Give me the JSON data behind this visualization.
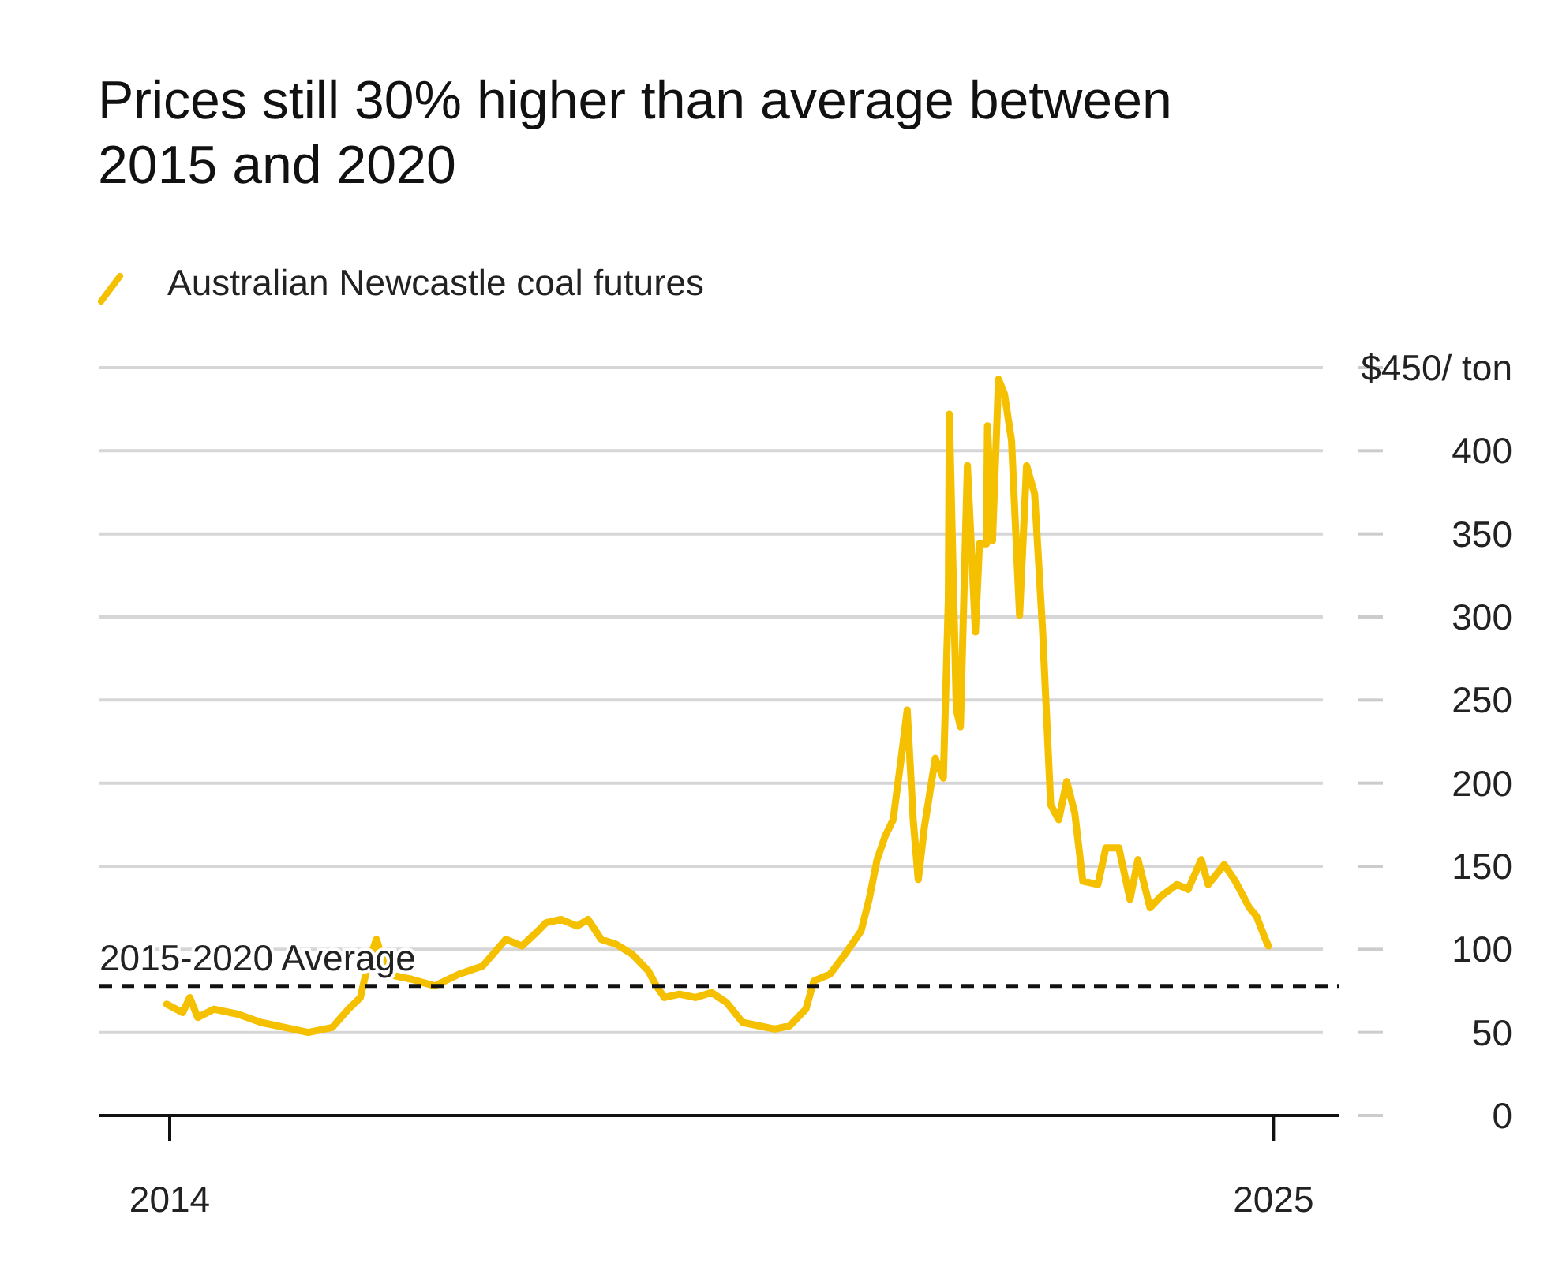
{
  "chart_data": {
    "type": "line",
    "title": "Prices still 30% higher than average between 2015 and 2020",
    "x": [
      2013.97,
      2014.13,
      2014.2,
      2014.28,
      2014.44,
      2014.68,
      2014.91,
      2015.15,
      2015.38,
      2015.62,
      2015.78,
      2015.9,
      2015.98,
      2016.06,
      2016.17,
      2016.41,
      2016.64,
      2016.88,
      2017.12,
      2017.35,
      2017.51,
      2017.67,
      2017.75,
      2017.9,
      2018.06,
      2018.17,
      2018.3,
      2018.45,
      2018.61,
      2018.77,
      2018.85,
      2018.93,
      2019.08,
      2019.24,
      2019.4,
      2019.55,
      2019.71,
      2019.87,
      2020.03,
      2020.18,
      2020.34,
      2020.42,
      2020.58,
      2020.73,
      2020.89,
      2020.97,
      2021.05,
      2021.13,
      2021.21,
      2021.29,
      2021.35,
      2021.41,
      2021.46,
      2021.52,
      2021.63,
      2021.71,
      2021.76,
      2021.77,
      2021.84,
      2021.88,
      2021.95,
      2022.03,
      2022.07,
      2022.14,
      2022.15,
      2022.2,
      2022.26,
      2022.32,
      2022.39,
      2022.47,
      2022.54,
      2022.62,
      2022.7,
      2022.78,
      2022.86,
      2022.94,
      2023.02,
      2023.1,
      2023.25,
      2023.33,
      2023.46,
      2023.57,
      2023.65,
      2023.77,
      2023.88,
      2024.04,
      2024.15,
      2024.28,
      2024.35,
      2024.51,
      2024.62,
      2024.76,
      2024.83,
      2024.92,
      2024.95
    ],
    "series": [
      {
        "name": "Australian Newcastle coal futures",
        "color": "#f5c000",
        "values": [
          67,
          62,
          71,
          59,
          64,
          61,
          56,
          53,
          50,
          53,
          64,
          71,
          92,
          106,
          85,
          82,
          78,
          85,
          90,
          106,
          102,
          111,
          116,
          118,
          114,
          118,
          106,
          103,
          97,
          87,
          78,
          71,
          73,
          71,
          74,
          68,
          56,
          54,
          52,
          54,
          64,
          81,
          85,
          97,
          111,
          130,
          154,
          168,
          178,
          215,
          244,
          178,
          142,
          173,
          215,
          203,
          310,
          422,
          244,
          234,
          391,
          291,
          344,
          344,
          415,
          346,
          443,
          434,
          406,
          301,
          391,
          374,
          291,
          187,
          178,
          201,
          182,
          141,
          139,
          161,
          161,
          130,
          154,
          125,
          132,
          139,
          136,
          154,
          139,
          151,
          141,
          125,
          120,
          106,
          102
        ]
      }
    ],
    "xlim": [
      2013.3,
      2025.65
    ],
    "xticks": [
      2014,
      2025
    ],
    "ylim": [
      0,
      450
    ],
    "yticks": [
      0,
      50,
      100,
      150,
      200,
      250,
      300,
      350,
      400,
      {
        "value": 450,
        "label": "$450/ ton"
      }
    ],
    "ref_lines": [
      {
        "axis": "y",
        "value": 78,
        "label": "2015-2020 Average",
        "color": "#111111",
        "line_style": "dashed"
      }
    ],
    "grid": "y",
    "legend": "top left",
    "line_style": "solid",
    "marker": "none"
  }
}
